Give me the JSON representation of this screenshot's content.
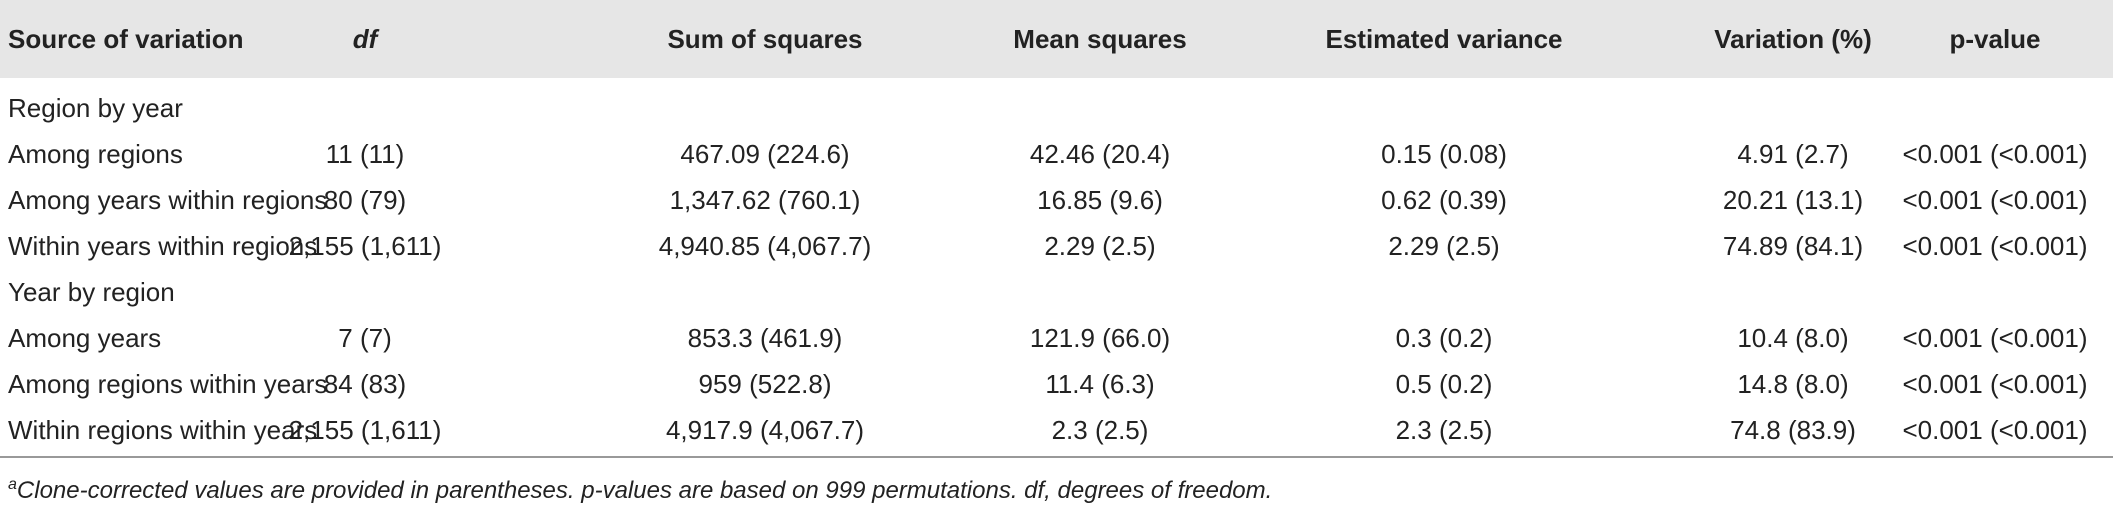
{
  "table": {
    "header": [
      "Source of variation",
      "df",
      "Sum of squares",
      "Mean squares",
      "Estimated variance",
      "Variation (%)",
      "p-value"
    ],
    "rows": [
      [
        "Region by year"
      ],
      [
        "Among regions",
        "11 (11)",
        "467.09 (224.6)",
        "42.46 (20.4)",
        "0.15 (0.08)",
        "4.91 (2.7)",
        "<0.001 (<0.001)"
      ],
      [
        "Among years within regions",
        "80 (79)",
        "1,347.62 (760.1)",
        "16.85 (9.6)",
        "0.62 (0.39)",
        "20.21 (13.1)",
        "<0.001 (<0.001)"
      ],
      [
        "Within years within regions",
        "2,155 (1,611)",
        "4,940.85 (4,067.7)",
        "2.29 (2.5)",
        "2.29 (2.5)",
        "74.89 (84.1)",
        "<0.001 (<0.001)"
      ],
      [
        "Year by region"
      ],
      [
        "Among years",
        "7 (7)",
        "853.3 (461.9)",
        "121.9 (66.0)",
        "0.3 (0.2)",
        "10.4 (8.0)",
        "<0.001 (<0.001)"
      ],
      [
        "Among regions within years",
        "84 (83)",
        "959 (522.8)",
        "11.4 (6.3)",
        "0.5 (0.2)",
        "14.8 (8.0)",
        "<0.001 (<0.001)"
      ],
      [
        "Within regions within years",
        "2,155 (1,611)",
        "4,917.9 (4,067.7)",
        "2.3 (2.5)",
        "2.3 (2.5)",
        "74.8 (83.9)",
        "<0.001 (<0.001)"
      ]
    ],
    "footnote": {
      "marker": "a",
      "text": "Clone-corrected values are provided in parentheses. p-values are based on 999 permutations. df, degrees of freedom."
    }
  }
}
